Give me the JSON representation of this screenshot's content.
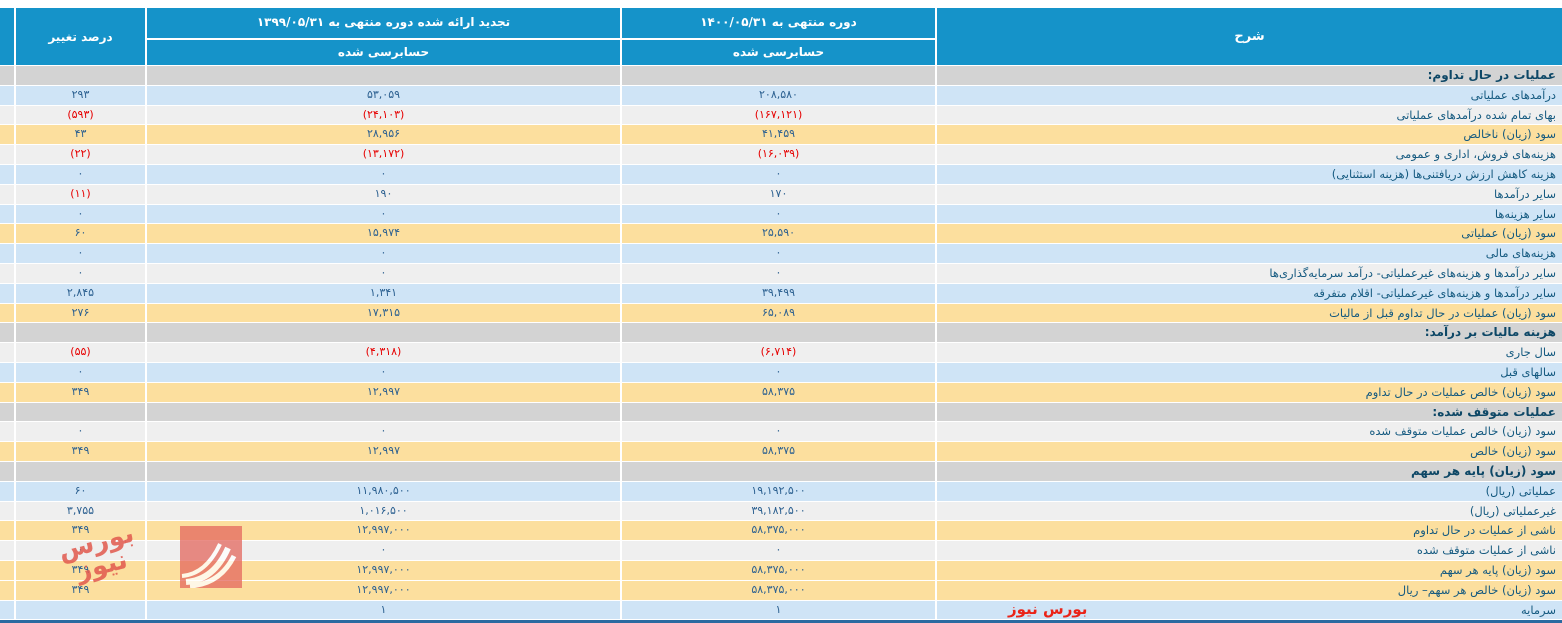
{
  "colors": {
    "header_bg": "#1593c9",
    "row_blue": "#cfe4f6",
    "row_white": "#efefef",
    "row_orange": "#fcdf9e",
    "row_section_gray": "#d3d3d3",
    "desc_text": "#155a80",
    "number_text": "#2d6191",
    "negative_number": "#e60000",
    "bottom_border": "#2a6aa0",
    "watermark_red": "#ea2318"
  },
  "header": {
    "desc": "شرح",
    "period_1400": "دوره منتهی به ۱۴۰۰/۰۵/۳۱",
    "audited_1400": "حسابرسی شده",
    "period_1399": "تجدید ارائه شده دوره منتهی به ۱۳۹۹/۰۵/۳۱",
    "audited_1399": "حسابرسی شده",
    "change": "درصد تغییر"
  },
  "chart_data": {
    "type": "table",
    "columns": [
      "شرح",
      "دوره منتهی به ۱۴۰۰/۰۵/۳۱ - حسابرسی شده",
      "تجدید ارائه شده دوره منتهی به ۱۳۹۹/۰۵/۳۱ - حسابرسی شده",
      "درصد تغییر"
    ],
    "rows": [
      {
        "kind": "section",
        "desc": "عملیات در حال تداوم:",
        "v1400": "",
        "v1399": "",
        "change": ""
      },
      {
        "kind": "blue",
        "desc": "درآمدهای عملیاتی",
        "v1400": "۲۰۸,۵۸۰",
        "v1399": "۵۳,۰۵۹",
        "change": "۲۹۳"
      },
      {
        "kind": "white",
        "desc": "بهای تمام شده درآمدهای عملیاتی",
        "v1400": "(۱۶۷,۱۲۱)",
        "v1399": "(۲۴,۱۰۳)",
        "change": "(۵۹۳)"
      },
      {
        "kind": "orange",
        "desc": "سود (زیان) ناخالص",
        "v1400": "۴۱,۴۵۹",
        "v1399": "۲۸,۹۵۶",
        "change": "۴۳"
      },
      {
        "kind": "white",
        "desc": "هزینه‌های فروش، اداری و عمومی",
        "v1400": "(۱۶,۰۳۹)",
        "v1399": "(۱۳,۱۷۲)",
        "change": "(۲۲)"
      },
      {
        "kind": "blue",
        "desc": "هزینه کاهش ارزش دریافتنی‌ها (هزینه استثنایی)",
        "v1400": "۰",
        "v1399": "۰",
        "change": "۰"
      },
      {
        "kind": "white",
        "desc": "سایر درآمدها",
        "v1400": "۱۷۰",
        "v1399": "۱۹۰",
        "change": "(۱۱)"
      },
      {
        "kind": "blue",
        "desc": "سایر هزینه‌ها",
        "v1400": "۰",
        "v1399": "۰",
        "change": "۰"
      },
      {
        "kind": "orange",
        "desc": "سود (زیان) عملیاتی",
        "v1400": "۲۵,۵۹۰",
        "v1399": "۱۵,۹۷۴",
        "change": "۶۰"
      },
      {
        "kind": "blue",
        "desc": "هزینه‌های مالی",
        "v1400": "۰",
        "v1399": "۰",
        "change": "۰"
      },
      {
        "kind": "white",
        "desc": "سایر درآمدها و هزینه‌های غیرعملیاتی- درآمد سرمایه‌گذاری‌ها",
        "v1400": "۰",
        "v1399": "۰",
        "change": "۰"
      },
      {
        "kind": "blue",
        "desc": "سایر درآمدها و هزینه‌های غیرعملیاتی- اقلام متفرقه",
        "v1400": "۳۹,۴۹۹",
        "v1399": "۱,۳۴۱",
        "change": "۲,۸۴۵"
      },
      {
        "kind": "orange",
        "desc": "سود (زیان) عملیات در حال تداوم قبل از مالیات",
        "v1400": "۶۵,۰۸۹",
        "v1399": "۱۷,۳۱۵",
        "change": "۲۷۶"
      },
      {
        "kind": "section",
        "desc": "هزینه مالیات بر درآمد:",
        "v1400": "",
        "v1399": "",
        "change": ""
      },
      {
        "kind": "white",
        "desc": "سال جاری",
        "v1400": "(۶,۷۱۴)",
        "v1399": "(۴,۳۱۸)",
        "change": "(۵۵)"
      },
      {
        "kind": "blue",
        "desc": "سالهای قبل",
        "v1400": "۰",
        "v1399": "۰",
        "change": "۰"
      },
      {
        "kind": "orange",
        "desc": "سود (زیان) خالص عملیات در حال تداوم",
        "v1400": "۵۸,۳۷۵",
        "v1399": "۱۲,۹۹۷",
        "change": "۳۴۹"
      },
      {
        "kind": "section",
        "desc": "عملیات متوقف شده:",
        "v1400": "",
        "v1399": "",
        "change": ""
      },
      {
        "kind": "white",
        "desc": "سود (زیان) خالص عملیات متوقف شده",
        "v1400": "۰",
        "v1399": "۰",
        "change": "۰"
      },
      {
        "kind": "orange",
        "desc": "سود (زیان) خالص",
        "v1400": "۵۸,۳۷۵",
        "v1399": "۱۲,۹۹۷",
        "change": "۳۴۹"
      },
      {
        "kind": "section",
        "desc": "سود (زیان) پایه هر سهم",
        "v1400": "",
        "v1399": "",
        "change": ""
      },
      {
        "kind": "blue",
        "desc": "عملیاتی (ریال)",
        "v1400": "۱۹,۱۹۲,۵۰۰",
        "v1399": "۱۱,۹۸۰,۵۰۰",
        "change": "۶۰"
      },
      {
        "kind": "white",
        "desc": "غیرعملیاتی (ریال)",
        "v1400": "۳۹,۱۸۲,۵۰۰",
        "v1399": "۱,۰۱۶,۵۰۰",
        "change": "۳,۷۵۵"
      },
      {
        "kind": "orange",
        "desc": "ناشی از عملیات در حال تداوم",
        "v1400": "۵۸,۳۷۵,۰۰۰",
        "v1399": "۱۲,۹۹۷,۰۰۰",
        "change": "۳۴۹"
      },
      {
        "kind": "white",
        "desc": "ناشی از عملیات متوقف شده",
        "v1400": "۰",
        "v1399": "۰",
        "change": "۰"
      },
      {
        "kind": "orange",
        "desc": "سود (زیان) پایه هر سهم",
        "v1400": "۵۸,۳۷۵,۰۰۰",
        "v1399": "۱۲,۹۹۷,۰۰۰",
        "change": "۳۴۹"
      },
      {
        "kind": "orange",
        "desc": "سود (زیان) خالص هر سهم– ریال",
        "v1400": "۵۸,۳۷۵,۰۰۰",
        "v1399": "۱۲,۹۹۷,۰۰۰",
        "change": "۳۴۹"
      },
      {
        "kind": "blue",
        "desc": "سرمایه",
        "v1400": "۱",
        "v1399": "۱",
        "change": ""
      }
    ]
  },
  "watermark": {
    "logo_text": "بورس نیوز",
    "bottom_text": "بورس نیوز"
  }
}
